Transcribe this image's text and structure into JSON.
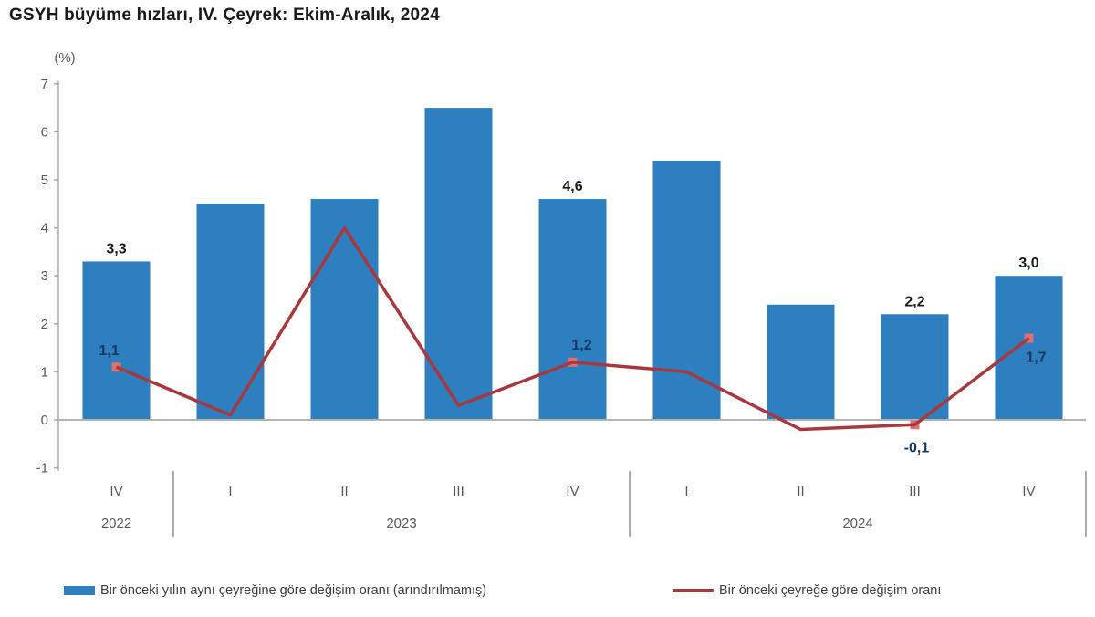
{
  "title": "GSYH büyüme hızları, IV. Çeyrek: Ekim-Aralık, 2024",
  "chart_data": {
    "type": "bar+line",
    "title": "GSYH büyüme hızları, IV. Çeyrek: Ekim-Aralık, 2024",
    "y_unit": "(%)",
    "ylim": [
      -1,
      7
    ],
    "y_ticks": [
      7,
      6,
      5,
      4,
      3,
      2,
      1,
      0,
      -1
    ],
    "grid": "off",
    "legend_position": "bottom",
    "quarters": [
      "IV",
      "I",
      "II",
      "III",
      "IV",
      "I",
      "II",
      "III",
      "IV"
    ],
    "year_groups": [
      {
        "label": "2022",
        "start": 0,
        "end": 0
      },
      {
        "label": "2023",
        "start": 1,
        "end": 4
      },
      {
        "label": "2024",
        "start": 5,
        "end": 8
      }
    ],
    "series": [
      {
        "name": "Bir önceki yılın aynı çeyreğine göre değişim oranı (arındırılmamış)",
        "type": "bar",
        "color": "#2E7FC0",
        "values": [
          3.3,
          4.5,
          4.6,
          6.5,
          4.6,
          5.4,
          2.4,
          2.2,
          3.0
        ],
        "labels": [
          "3,3",
          null,
          null,
          null,
          "4,6",
          null,
          null,
          "2,2",
          "3,0"
        ]
      },
      {
        "name": "Bir önceki çeyreğe göre değişim oranı",
        "type": "line",
        "color": "#A7383C",
        "marker_color": "#E0706E",
        "values": [
          1.1,
          0.1,
          4.0,
          0.3,
          1.2,
          1.0,
          -0.2,
          -0.1,
          1.7
        ],
        "labels": [
          "1,1",
          null,
          null,
          null,
          "1,2",
          null,
          null,
          "-0,1",
          "1,7"
        ],
        "label_offsets": {
          "0": [
            -8,
            -13
          ],
          "4": [
            10,
            -14
          ],
          "7": [
            2,
            30
          ],
          "8": [
            8,
            26
          ]
        }
      }
    ],
    "label_colors": {
      "bar": "#1A1A1A",
      "line": "#17375E"
    },
    "axis_color": "#ABABAB",
    "text_color": "#595959"
  }
}
